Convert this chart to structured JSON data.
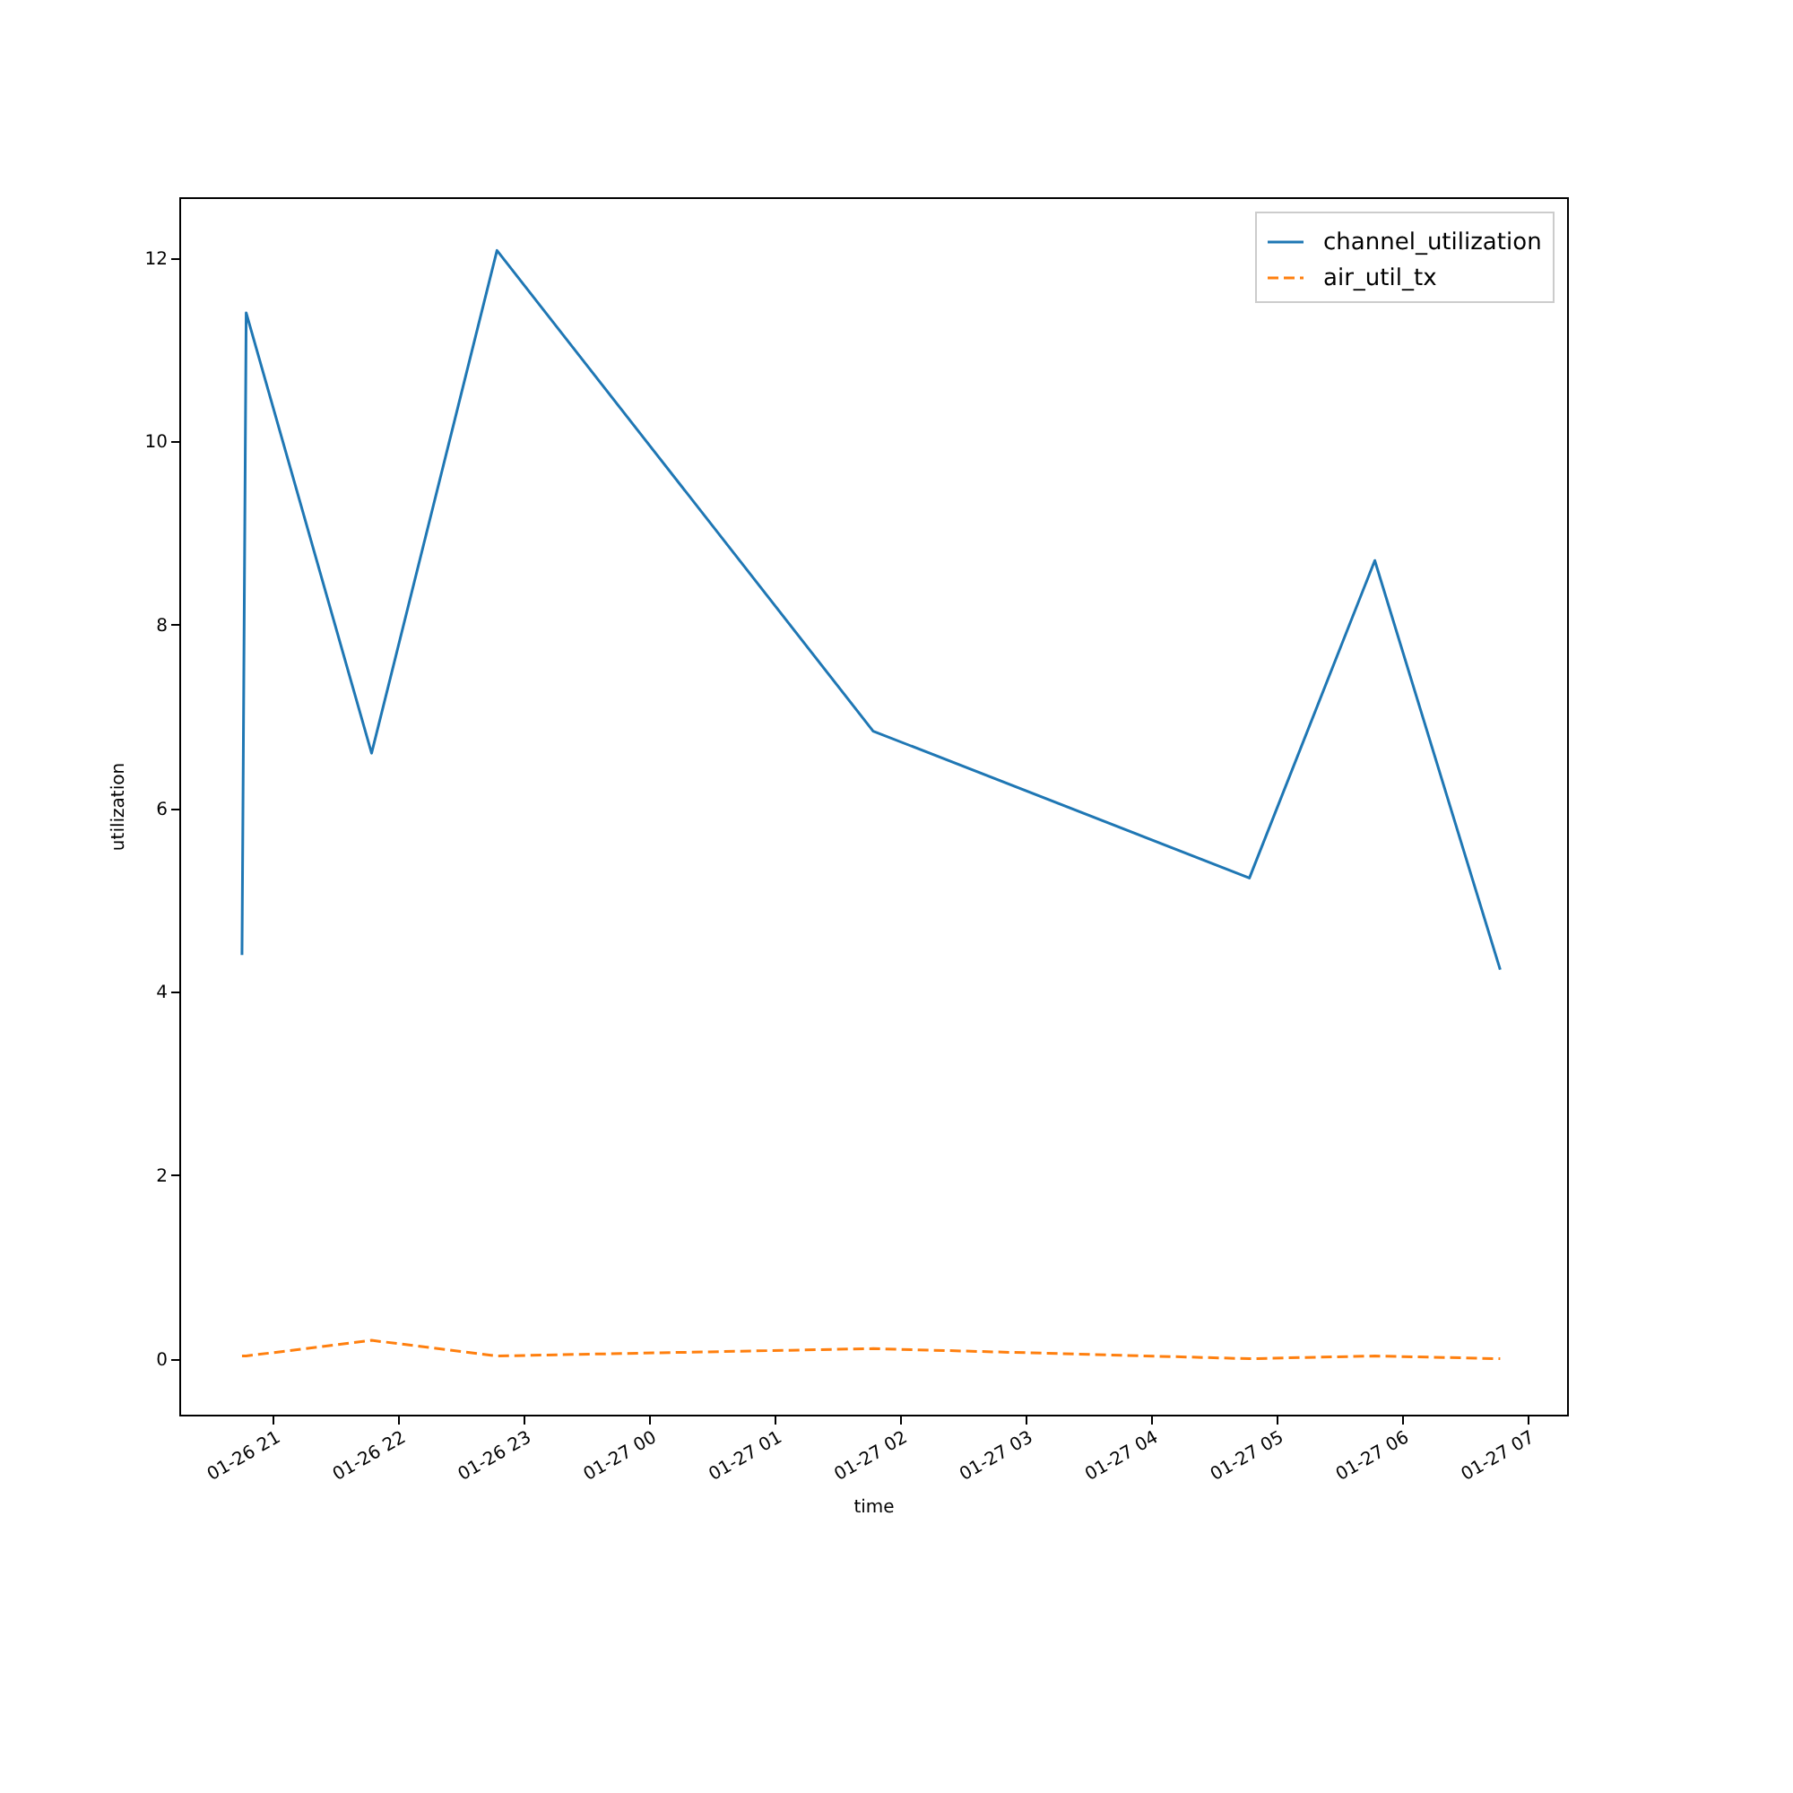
{
  "chart_data": {
    "type": "line",
    "xlabel": "time",
    "ylabel": "utilization",
    "x": [
      "--01-26T20:45",
      "--01-26T20:47",
      "--01-26T21:47",
      "--01-26T22:47",
      "--01-27T01:47",
      "--01-27T04:47",
      "--01-27T05:47",
      "--01-27T06:47"
    ],
    "series": [
      {
        "name": "channel_utilization",
        "color": "#1f77b4",
        "line_style": "solid",
        "values": [
          4.4,
          11.4,
          6.6,
          12.08,
          6.84,
          5.24,
          8.7,
          4.24
        ]
      },
      {
        "name": "air_util_tx",
        "color": "#ff7f0e",
        "line_style": "dashed",
        "values": [
          0.03,
          0.03,
          0.2,
          0.03,
          0.11,
          0.0,
          0.03,
          0.0
        ]
      }
    ],
    "xlim": [
      "--01-26T20:15",
      "--01-27T07:19"
    ],
    "xticks": [
      {
        "value": "--01-26T21:00",
        "label": "01-26 21"
      },
      {
        "value": "--01-26T22:00",
        "label": "01-26 22"
      },
      {
        "value": "--01-26T23:00",
        "label": "01-26 23"
      },
      {
        "value": "--01-27T00:00",
        "label": "01-27 00"
      },
      {
        "value": "--01-27T01:00",
        "label": "01-27 01"
      },
      {
        "value": "--01-27T02:00",
        "label": "01-27 02"
      },
      {
        "value": "--01-27T03:00",
        "label": "01-27 03"
      },
      {
        "value": "--01-27T04:00",
        "label": "01-27 04"
      },
      {
        "value": "--01-27T05:00",
        "label": "01-27 05"
      },
      {
        "value": "--01-27T06:00",
        "label": "01-27 06"
      },
      {
        "value": "--01-27T07:00",
        "label": "01-27 07"
      }
    ],
    "ylim": [
      -0.61,
      12.66
    ],
    "yticks": [
      0,
      2,
      4,
      6,
      8,
      10,
      12
    ],
    "legend": "top right",
    "grid": false
  }
}
